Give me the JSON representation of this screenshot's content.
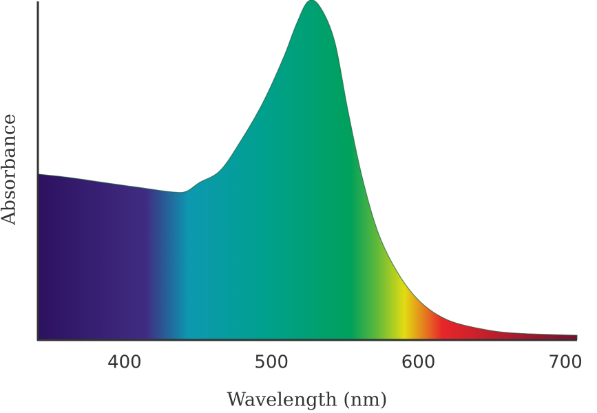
{
  "chart_data": {
    "type": "area",
    "x_label": "Wavelength (nm)",
    "y_label": "Absorbance",
    "x": [
      341,
      362,
      386,
      409,
      433,
      442,
      451,
      465,
      479,
      494,
      508,
      517,
      525,
      533,
      543,
      552,
      562,
      573,
      587,
      602,
      620,
      644,
      667,
      708
    ],
    "values": [
      0.487,
      0.477,
      0.462,
      0.448,
      0.434,
      0.436,
      0.462,
      0.497,
      0.584,
      0.696,
      0.828,
      0.929,
      0.996,
      0.98,
      0.878,
      0.675,
      0.473,
      0.31,
      0.189,
      0.108,
      0.057,
      0.03,
      0.018,
      0.012
    ],
    "xlim": [
      341,
      708
    ],
    "ylim": [
      0,
      1
    ],
    "xticks": [
      400,
      500,
      600,
      700
    ]
  }
}
